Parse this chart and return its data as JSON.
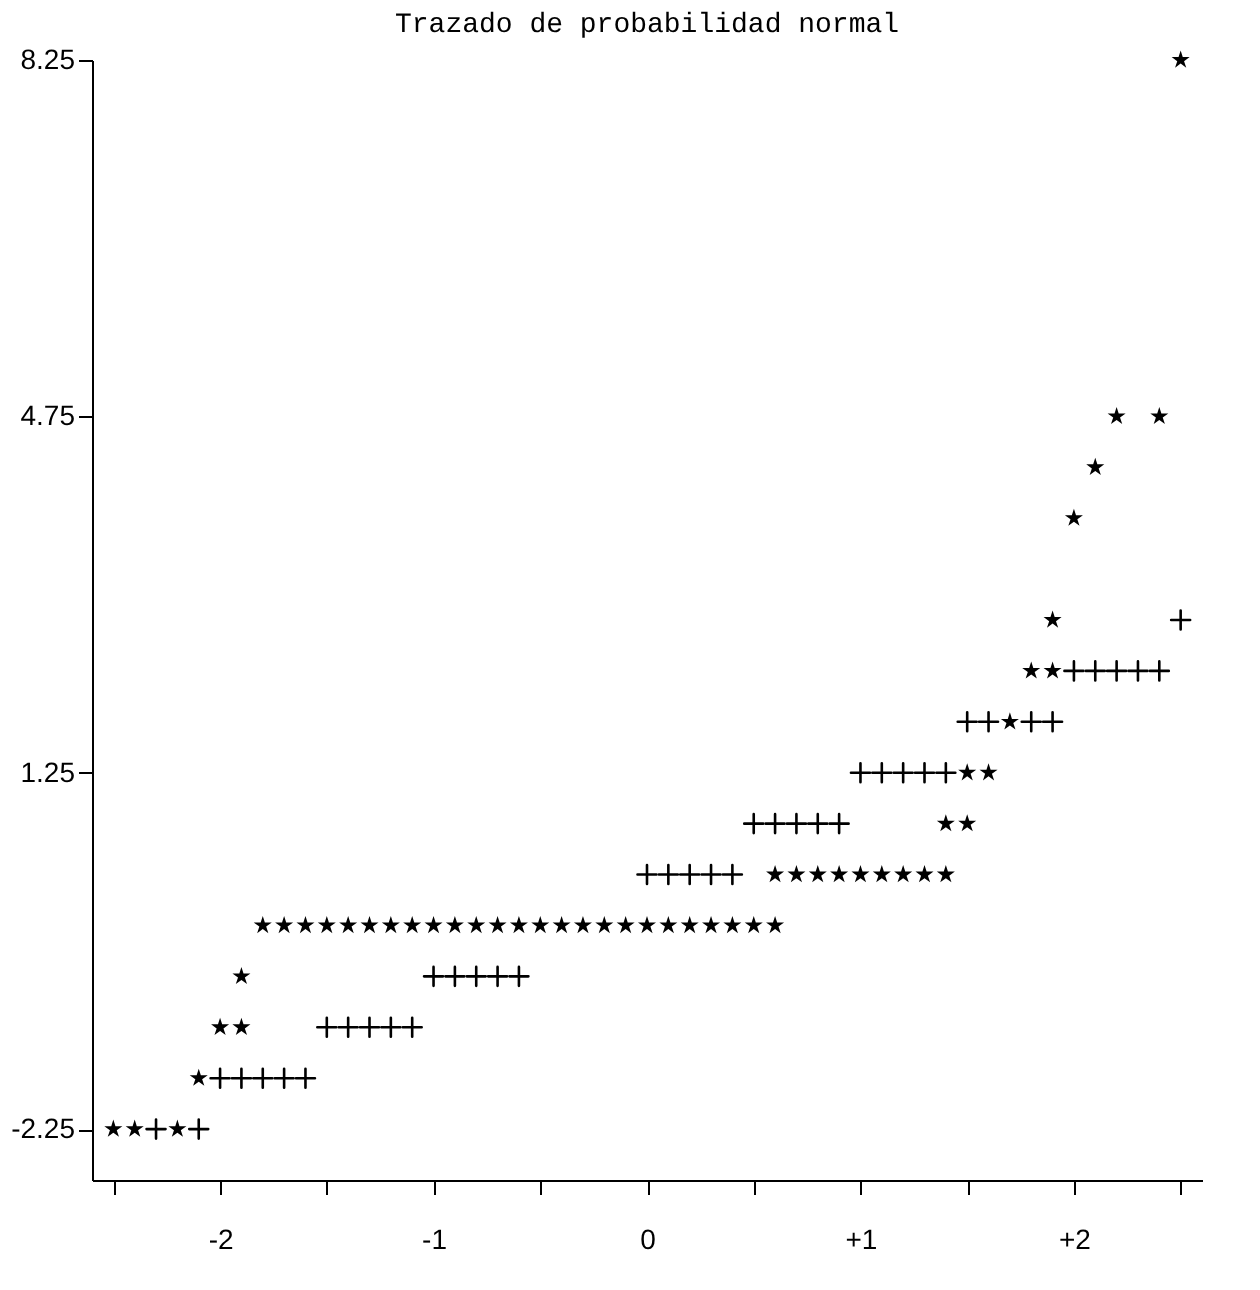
{
  "chart_data": {
    "type": "scatter",
    "title": "Trazado de probabilidad normal",
    "series": [
      {
        "color": "#000000",
        "marker": "cross",
        "x": [
          2.5,
          2.0,
          2.1,
          2.2,
          2.3,
          2.4,
          1.5,
          1.6,
          1.8,
          1.9,
          1.0,
          1.1,
          1.2,
          1.3,
          1.4,
          0.5,
          0.6,
          0.7,
          0.8,
          0.9,
          0.0,
          0.1,
          0.2,
          0.3,
          0.4,
          -1.0,
          -0.9,
          -0.8,
          -0.7,
          -0.6,
          -1.5,
          -1.4,
          -1.3,
          -1.2,
          -1.1,
          -2.0,
          -1.9,
          -1.8,
          -1.7,
          -1.6,
          -2.3,
          -2.1
        ],
        "values": [
          2.75,
          2.25,
          2.25,
          2.25,
          2.25,
          2.25,
          1.75,
          1.75,
          1.75,
          1.75,
          1.25,
          1.25,
          1.25,
          1.25,
          1.25,
          0.75,
          0.75,
          0.75,
          0.75,
          0.75,
          0.25,
          0.25,
          0.25,
          0.25,
          0.25,
          -0.75,
          -0.75,
          -0.75,
          -0.75,
          -0.75,
          -1.25,
          -1.25,
          -1.25,
          -1.25,
          -1.25,
          -1.75,
          -1.75,
          -1.75,
          -1.75,
          -1.75,
          -2.25,
          -2.25
        ]
      },
      {
        "color": "#000000",
        "marker": "star",
        "x": [
          -2.5,
          -2.4,
          -2.2,
          -2.1,
          -2.0,
          -1.9,
          -1.9,
          -1.8,
          -1.7,
          -1.6,
          -1.5,
          -1.4,
          -1.3,
          -1.2,
          -1.1,
          -1.0,
          -0.9,
          -0.8,
          -0.7,
          -0.6,
          -0.5,
          -0.4,
          -0.3,
          -0.2,
          -0.1,
          0.0,
          0.1,
          0.2,
          0.3,
          0.4,
          0.5,
          0.6,
          0.6,
          0.7,
          0.8,
          0.9,
          1.0,
          1.1,
          1.2,
          1.3,
          1.4,
          1.4,
          1.5,
          1.5,
          1.6,
          1.7,
          1.8,
          1.9,
          1.9,
          2.0,
          2.1,
          2.2,
          2.4,
          2.5
        ],
        "values": [
          -2.25,
          -2.25,
          -2.25,
          -1.75,
          -1.25,
          -1.25,
          -0.75,
          -0.25,
          -0.25,
          -0.25,
          -0.25,
          -0.25,
          -0.25,
          -0.25,
          -0.25,
          -0.25,
          -0.25,
          -0.25,
          -0.25,
          -0.25,
          -0.25,
          -0.25,
          -0.25,
          -0.25,
          -0.25,
          -0.25,
          -0.25,
          -0.25,
          -0.25,
          -0.25,
          -0.25,
          -0.25,
          0.25,
          0.25,
          0.25,
          0.25,
          0.25,
          0.25,
          0.25,
          0.25,
          0.25,
          0.75,
          0.75,
          1.25,
          1.25,
          1.75,
          2.25,
          2.25,
          2.75,
          3.75,
          4.25,
          4.75,
          4.75,
          8.25
        ]
      }
    ],
    "xlim": [
      -2.6,
      2.6
    ],
    "xticks": [
      {
        "value": -2.5,
        "label": null
      },
      -2,
      {
        "value": -1.5,
        "label": null
      },
      -1,
      {
        "value": -0.5,
        "label": null
      },
      0,
      {
        "value": 0.5,
        "label": null
      },
      {
        "value": 1,
        "label": "+1"
      },
      {
        "value": 1.5,
        "label": null
      },
      {
        "value": 2,
        "label": "+2"
      },
      {
        "value": 2.5,
        "label": null
      }
    ],
    "ylim": [
      -2.75,
      8.25
    ],
    "yticks": [
      -2.25,
      1.25,
      4.75,
      8.25
    ],
    "grid": false
  }
}
